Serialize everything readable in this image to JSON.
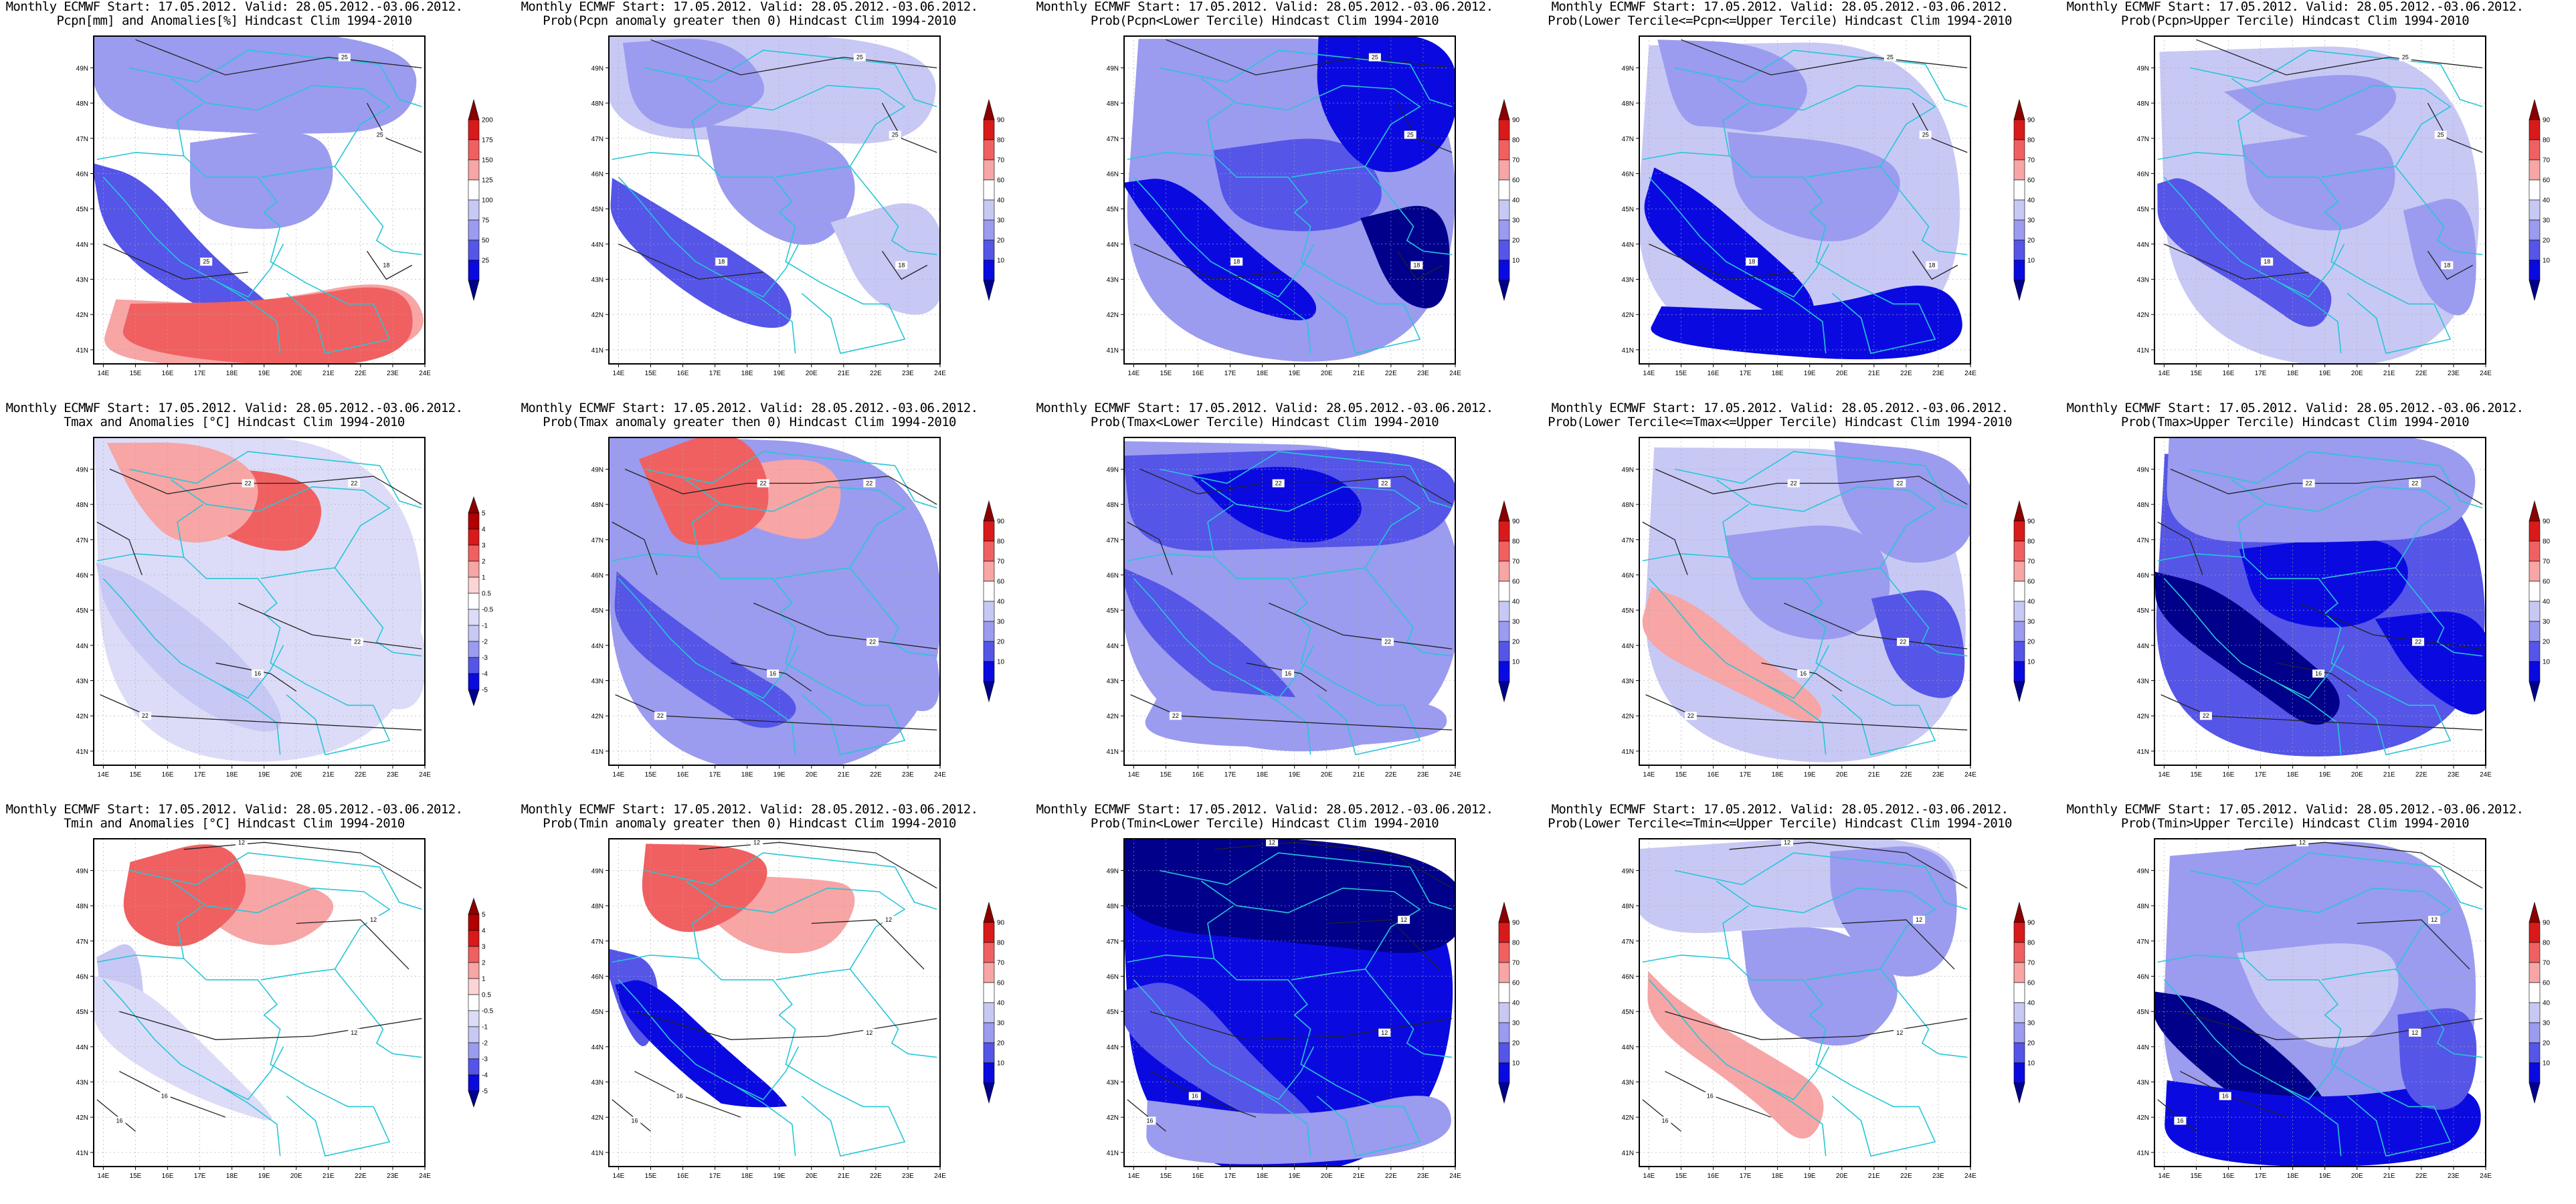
{
  "panels": [
    {
      "row": 0,
      "col": 0,
      "line1": "Monthly ECMWF Start: 17.05.2012. Valid: 28.05.2012.-03.06.2012.",
      "line2": "Pcpn[mm] and Anomalies[%] Hindcast Clim 1994-2010",
      "scale": "anomaly_pcpn",
      "contour_labels": [
        "25",
        "25",
        "25",
        "18"
      ],
      "variable": "pcpn",
      "kind": "anomaly"
    },
    {
      "row": 0,
      "col": 1,
      "line1": "Monthly ECMWF Start: 17.05.2012. Valid: 28.05.2012.-03.06.2012.",
      "line2": "Prob(Pcpn anomaly greater then 0) Hindcast Clim 1994-2010",
      "scale": "prob",
      "contour_labels": [
        "25",
        "25",
        "18",
        "18"
      ],
      "variable": "pcpn",
      "kind": "prob_pos"
    },
    {
      "row": 0,
      "col": 2,
      "line1": "Monthly ECMWF Start: 17.05.2012. Valid: 28.05.2012.-03.06.2012.",
      "line2": "Prob(Pcpn<Lower Tercile) Hindcast Clim 1994-2010",
      "scale": "prob",
      "contour_labels": [
        "25",
        "25",
        "18",
        "18"
      ],
      "variable": "pcpn",
      "kind": "prob_low"
    },
    {
      "row": 0,
      "col": 3,
      "line1": "Monthly ECMWF Start: 17.05.2012. Valid: 28.05.2012.-03.06.2012.",
      "line2": "Prob(Lower Tercile<=Pcpn<=Upper Tercile) Hindcast Clim 1994-2010",
      "scale": "prob",
      "contour_labels": [
        "25",
        "25",
        "18",
        "18"
      ],
      "variable": "pcpn",
      "kind": "prob_mid"
    },
    {
      "row": 0,
      "col": 4,
      "line1": "Monthly ECMWF Start: 17.05.2012. Valid: 28.05.2012.-03.06.2012.",
      "line2": "Prob(Pcpn>Upper Tercile) Hindcast Clim 1994-2010",
      "scale": "prob",
      "contour_labels": [
        "25",
        "25",
        "18",
        "18"
      ],
      "variable": "pcpn",
      "kind": "prob_high"
    },
    {
      "row": 1,
      "col": 0,
      "line1": "Monthly ECMWF Start: 17.05.2012. Valid: 28.05.2012.-03.06.2012.",
      "line2": "Tmax and Anomalies [°C] Hindcast Clim 1994-2010",
      "scale": "anomaly_temp",
      "contour_labels": [
        "22",
        "22",
        "22",
        "16",
        "22"
      ],
      "variable": "tmax",
      "kind": "anomaly"
    },
    {
      "row": 1,
      "col": 1,
      "line1": "Monthly ECMWF Start: 17.05.2012. Valid: 28.05.2012.-03.06.2012.",
      "line2": "Prob(Tmax anomaly greater then 0) Hindcast Clim 1994-2010",
      "scale": "prob",
      "contour_labels": [
        "22",
        "22",
        "22",
        "16",
        "22"
      ],
      "variable": "tmax",
      "kind": "prob_pos"
    },
    {
      "row": 1,
      "col": 2,
      "line1": "Monthly ECMWF Start: 17.05.2012. Valid: 28.05.2012.-03.06.2012.",
      "line2": "Prob(Tmax<Lower Tercile) Hindcast Clim 1994-2010",
      "scale": "prob",
      "contour_labels": [
        "22",
        "22",
        "22",
        "16",
        "22"
      ],
      "variable": "tmax",
      "kind": "prob_low"
    },
    {
      "row": 1,
      "col": 3,
      "line1": "Monthly ECMWF Start: 17.05.2012. Valid: 28.05.2012.-03.06.2012.",
      "line2": "Prob(Lower Tercile<=Tmax<=Upper Tercile) Hindcast Clim 1994-2010",
      "scale": "prob",
      "contour_labels": [
        "22",
        "22",
        "22",
        "16",
        "22"
      ],
      "variable": "tmax",
      "kind": "prob_mid"
    },
    {
      "row": 1,
      "col": 4,
      "line1": "Monthly ECMWF Start: 17.05.2012. Valid: 28.05.2012.-03.06.2012.",
      "line2": "Prob(Tmax>Upper Tercile) Hindcast Clim 1994-2010",
      "scale": "prob",
      "contour_labels": [
        "22",
        "22",
        "22",
        "16",
        "22"
      ],
      "variable": "tmax",
      "kind": "prob_high"
    },
    {
      "row": 2,
      "col": 0,
      "line1": "Monthly ECMWF Start: 17.05.2012. Valid: 28.05.2012.-03.06.2012.",
      "line2": "Tmin and Anomalies [°C] Hindcast Clim 1994-2010",
      "scale": "anomaly_temp",
      "contour_labels": [
        "12",
        "12",
        "12",
        "16",
        "16"
      ],
      "variable": "tmin",
      "kind": "anomaly"
    },
    {
      "row": 2,
      "col": 1,
      "line1": "Monthly ECMWF Start: 17.05.2012. Valid: 28.05.2012.-03.06.2012.",
      "line2": "Prob(Tmin anomaly greater then 0) Hindcast Clim 1994-2010",
      "scale": "prob",
      "contour_labels": [
        "12",
        "12",
        "12",
        "16",
        "16"
      ],
      "variable": "tmin",
      "kind": "prob_pos"
    },
    {
      "row": 2,
      "col": 2,
      "line1": "Monthly ECMWF Start: 17.05.2012. Valid: 28.05.2012.-03.06.2012.",
      "line2": "Prob(Tmin<Lower Tercile) Hindcast Clim 1994-2010",
      "scale": "prob",
      "contour_labels": [
        "12",
        "12",
        "12",
        "16",
        "16"
      ],
      "variable": "tmin",
      "kind": "prob_low"
    },
    {
      "row": 2,
      "col": 3,
      "line1": "Monthly ECMWF Start: 17.05.2012. Valid: 28.05.2012.-03.06.2012.",
      "line2": "Prob(Lower Tercile<=Tmin<=Upper Tercile) Hindcast Clim 1994-2010",
      "scale": "prob",
      "contour_labels": [
        "12",
        "12",
        "12",
        "16",
        "16"
      ],
      "variable": "tmin",
      "kind": "prob_mid"
    },
    {
      "row": 2,
      "col": 4,
      "line1": "Monthly ECMWF Start: 17.05.2012. Valid: 28.05.2012.-03.06.2012.",
      "line2": "Prob(Tmin>Upper Tercile) Hindcast Clim 1994-2010",
      "scale": "prob",
      "contour_labels": [
        "12",
        "12",
        "12",
        "16",
        "16"
      ],
      "variable": "tmin",
      "kind": "prob_high"
    }
  ],
  "axes": {
    "lon_labels": [
      "14E",
      "15E",
      "16E",
      "17E",
      "18E",
      "19E",
      "20E",
      "21E",
      "22E",
      "23E",
      "24E"
    ],
    "lat_labels": [
      "49N",
      "48N",
      "47N",
      "46N",
      "45N",
      "44N",
      "43N",
      "42N",
      "41N"
    ]
  },
  "scales": {
    "prob": {
      "ticks": [
        "90",
        "80",
        "70",
        "60",
        "40",
        "30",
        "20",
        "10"
      ],
      "colors": [
        "#8b0000",
        "#d91a1a",
        "#f06060",
        "#f7a5a5",
        "#ffffff",
        "#c8c8f5",
        "#9b9bf0",
        "#5555e8",
        "#0a0ae0",
        "#00008b"
      ]
    },
    "anomaly_pcpn": {
      "ticks": [
        "200",
        "175",
        "150",
        "125",
        "100",
        "75",
        "50",
        "25"
      ],
      "colors": [
        "#8b0000",
        "#d91a1a",
        "#f06060",
        "#f7a5a5",
        "#ffffff",
        "#c8c8f5",
        "#9b9bf0",
        "#5555e8",
        "#0a0ae0",
        "#00008b"
      ]
    },
    "anomaly_temp": {
      "ticks": [
        "5",
        "4",
        "3",
        "2",
        "1",
        "0.5",
        "-0.5",
        "-1",
        "-2",
        "-3",
        "-4",
        "-5"
      ],
      "colors": [
        "#8b0000",
        "#b00000",
        "#d91a1a",
        "#f06060",
        "#f7a5a5",
        "#fbd5d5",
        "#ffffff",
        "#dcdcf8",
        "#c8c8f5",
        "#9b9bf0",
        "#5555e8",
        "#0a0ae0",
        "#00008b"
      ]
    }
  },
  "palette": {
    "coast": "#27c6d6",
    "contour": "#222222",
    "grid": "#aaaaaa"
  }
}
